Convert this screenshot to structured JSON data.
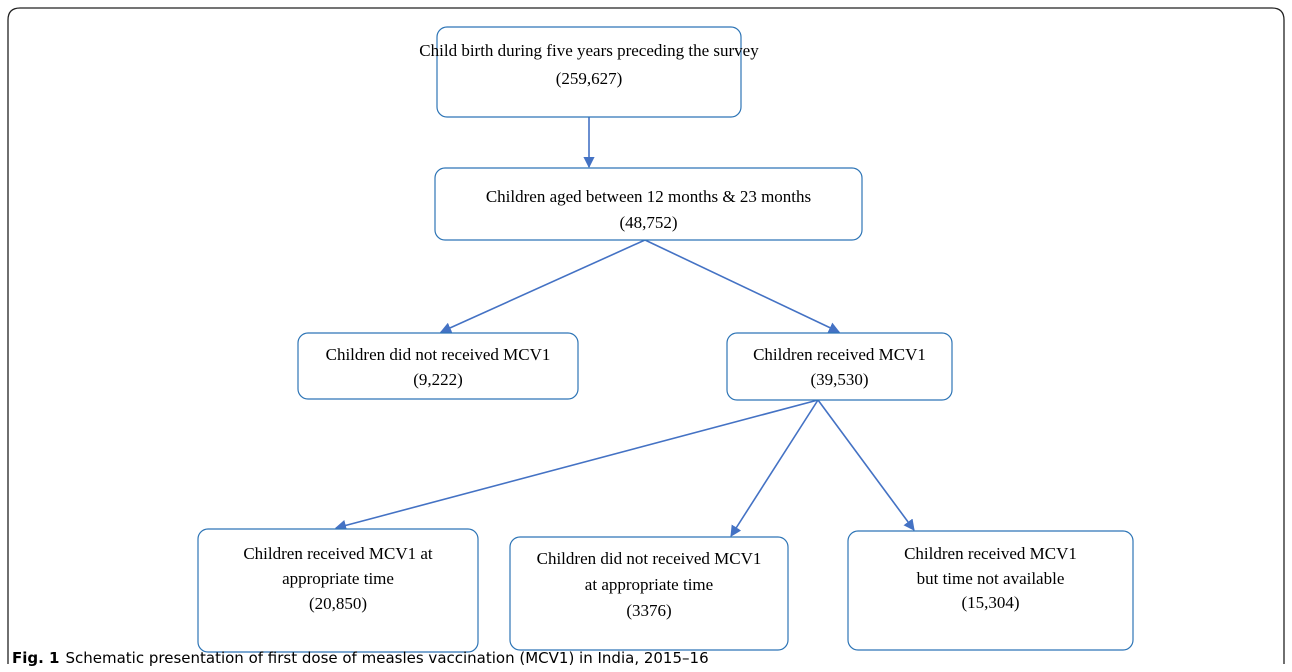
{
  "nodes": [
    {
      "lines": [
        "Child birth during five years preceding the survey",
        "(259,627)"
      ]
    },
    {
      "lines": [
        "Children aged between 12 months & 23 months",
        "(48,752)"
      ]
    },
    {
      "lines": [
        "Children did not received MCV1",
        "(9,222)"
      ]
    },
    {
      "lines": [
        "Children received MCV1",
        "(39,530)"
      ]
    },
    {
      "lines": [
        "Children received MCV1 at",
        "appropriate time",
        "(20,850)"
      ]
    },
    {
      "lines": [
        "Children did not received MCV1",
        "at appropriate time",
        "(3376)"
      ]
    },
    {
      "lines": [
        "Children received MCV1",
        "but time not available",
        "(15,304)"
      ]
    }
  ],
  "caption": {
    "label": "Fig. 1",
    "text": "Schematic presentation of first dose of measles vaccination (MCV1) in India, 2015–16"
  }
}
